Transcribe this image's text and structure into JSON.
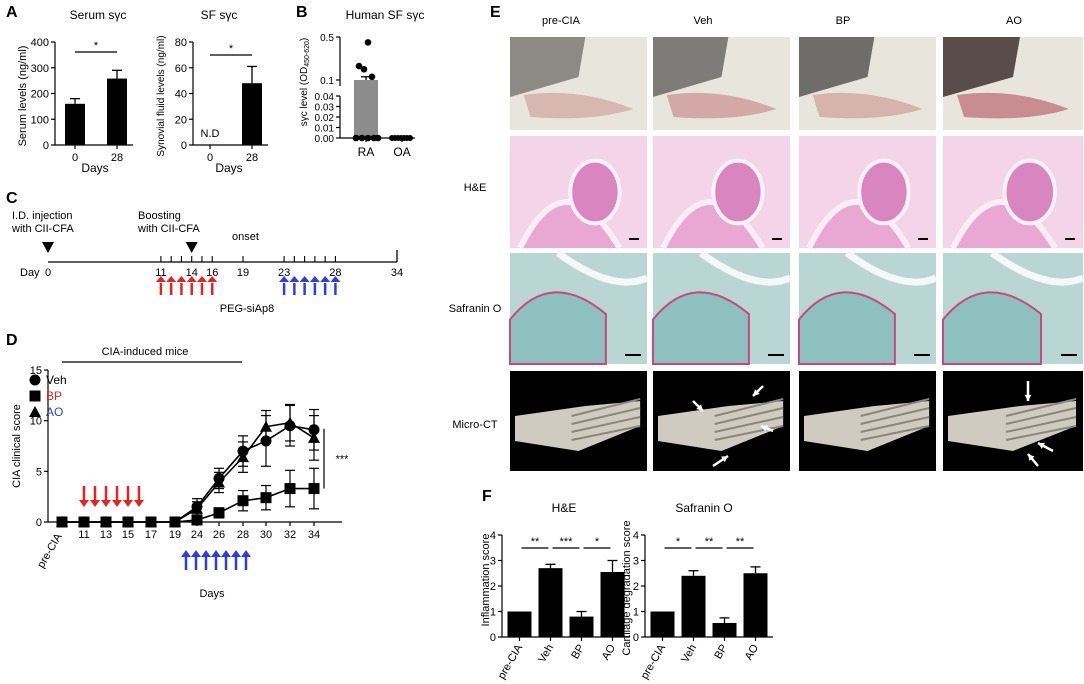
{
  "panels": {
    "A": {
      "letter": "A",
      "left": {
        "title": "Serum sγc",
        "ylabel": "Serum levels (ng/ml)",
        "xlabel": "Days",
        "yticks": [
          "0",
          "100",
          "200",
          "300",
          "400"
        ],
        "categories": [
          "0",
          "28"
        ],
        "values": [
          160,
          258
        ],
        "errors": [
          20,
          32
        ],
        "ylim": [
          0,
          400
        ],
        "sig": "*"
      },
      "right": {
        "title": "SF sγc",
        "ylabel": "Synovial fluid levels (ng/ml)",
        "xlabel": "Days",
        "yticks": [
          "0",
          "20",
          "40",
          "60",
          "80"
        ],
        "categories": [
          "0",
          "28"
        ],
        "values": [
          0,
          48
        ],
        "errors": [
          0,
          13
        ],
        "ylim": [
          0,
          80
        ],
        "nd_label": "N.D",
        "sig": "*"
      }
    },
    "B": {
      "letter": "B",
      "title": "Human SF sγc",
      "ylabel": "sγc level (OD",
      "ylabel_sub": "450-620",
      "ylabel_end": ")",
      "yticks_low": [
        "0.00",
        "0.01",
        "0.02",
        "0.03",
        "0.04"
      ],
      "yticks_high": [
        "0.1",
        "0.5"
      ],
      "categories": [
        "RA",
        "OA"
      ],
      "bar_values": [
        0.1,
        0.0
      ],
      "points_RA": [
        0.45,
        0.23,
        0.2,
        0.13,
        0.0,
        0.0,
        0.0,
        0.0,
        0.0
      ],
      "points_OA": [
        0.0,
        0.0,
        0.0,
        0.0,
        0.0,
        0.0,
        0.0
      ]
    },
    "C": {
      "letter": "C",
      "label_injection_1": "I.D. injection",
      "label_injection_2": "with CII-CFA",
      "label_boost_1": "Boosting",
      "label_boost_2": "with CII-CFA",
      "label_onset": "onset",
      "day_label": "Day",
      "ticks": [
        "0",
        "11",
        "14",
        "16",
        "19",
        "23",
        "28",
        "34"
      ],
      "treatment": "PEG-siAp8",
      "arrow_red": "#e8231f",
      "arrow_blue": "#2b3fe0"
    },
    "D": {
      "letter": "D",
      "bar_label": "CIA-induced mice",
      "ylabel": "CIA clinical score",
      "xlabel": "Days",
      "yticks": [
        "0",
        "5",
        "10",
        "15"
      ],
      "sig": "***",
      "legend": [
        {
          "name": "Veh",
          "color": "#000000",
          "marker": "circle"
        },
        {
          "name": "BP",
          "color": "#e8231f",
          "marker": "square"
        },
        {
          "name": "AO",
          "color": "#2b3fe0",
          "marker": "triangle"
        }
      ]
    },
    "E": {
      "letter": "E",
      "columns": [
        "pre-CIA",
        "Veh",
        "BP",
        "AO"
      ],
      "rows": [
        "",
        "H&E",
        "Safranin O",
        "Micro-CT"
      ]
    },
    "F": {
      "letter": "F",
      "left": {
        "title": "H&E",
        "ylabel": "Inflammation score",
        "yticks": [
          "0",
          "1",
          "2",
          "3",
          "4"
        ],
        "categories": [
          "pre-CIA",
          "Veh",
          "BP",
          "AO"
        ],
        "values": [
          1.0,
          2.7,
          0.8,
          2.55
        ],
        "errors": [
          0,
          0.15,
          0.2,
          0.45
        ],
        "ylim": [
          0,
          4
        ],
        "sig": [
          "**",
          "***",
          "*"
        ]
      },
      "right": {
        "title": "Safranin O",
        "ylabel": "Cartilage degradation score",
        "yticks": [
          "0",
          "1",
          "2",
          "3",
          "4"
        ],
        "categories": [
          "pre-CIA",
          "Veh",
          "BP",
          "AO"
        ],
        "values": [
          1.0,
          2.4,
          0.55,
          2.5
        ],
        "errors": [
          0,
          0.2,
          0.2,
          0.25
        ],
        "ylim": [
          0,
          4
        ],
        "sig": [
          "*",
          "**",
          "**"
        ]
      }
    }
  },
  "chart_data": [
    {
      "type": "bar",
      "title": "Serum sγc",
      "xlabel": "Days",
      "ylabel": "Serum levels (ng/ml)",
      "categories": [
        "0",
        "28"
      ],
      "values": [
        160,
        258
      ],
      "ylim": [
        0,
        400
      ]
    },
    {
      "type": "bar",
      "title": "SF sγc",
      "xlabel": "Days",
      "ylabel": "Synovial fluid levels (ng/ml)",
      "categories": [
        "0",
        "28"
      ],
      "values": [
        0,
        48
      ],
      "ylim": [
        0,
        80
      ]
    },
    {
      "type": "bar",
      "title": "Human SF sγc",
      "categories": [
        "RA",
        "OA"
      ],
      "values": [
        0.1,
        0.0
      ]
    },
    {
      "type": "line",
      "ylabel": "CIA clinical score",
      "xlabel": "Days",
      "categories": [
        "pre-CIA",
        "11",
        "13",
        "15",
        "17",
        "19",
        "24",
        "26",
        "28",
        "30",
        "32",
        "34"
      ],
      "ylim": [
        0,
        15
      ],
      "series": [
        {
          "name": "Veh",
          "values": [
            0,
            0,
            0,
            0,
            0,
            0,
            1.5,
            4.3,
            7.0,
            8.0,
            9.5,
            9.1
          ],
          "errors": [
            0,
            0,
            0,
            0,
            0,
            0,
            0.8,
            1.0,
            1.5,
            2.5,
            2.0,
            2.0
          ]
        },
        {
          "name": "BP",
          "values": [
            0,
            0,
            0,
            0,
            0,
            0,
            0.2,
            0.9,
            2.1,
            2.4,
            3.3,
            3.3
          ],
          "errors": [
            0,
            0,
            0,
            0,
            0,
            0,
            0.3,
            0.5,
            1.0,
            1.2,
            1.8,
            2.0
          ]
        },
        {
          "name": "AO",
          "values": [
            0,
            0,
            0,
            0,
            0,
            0,
            1.3,
            3.9,
            6.4,
            9.4,
            9.8,
            8.3
          ],
          "errors": [
            0,
            0,
            0,
            0,
            0,
            0,
            0.7,
            1.0,
            1.5,
            1.6,
            1.8,
            2.2
          ]
        }
      ]
    },
    {
      "type": "bar",
      "title": "H&E",
      "ylabel": "Inflammation score",
      "categories": [
        "pre-CIA",
        "Veh",
        "BP",
        "AO"
      ],
      "values": [
        1.0,
        2.7,
        0.8,
        2.55
      ],
      "ylim": [
        0,
        4
      ]
    },
    {
      "type": "bar",
      "title": "Safranin O",
      "ylabel": "Cartilage degradation score",
      "categories": [
        "pre-CIA",
        "Veh",
        "BP",
        "AO"
      ],
      "values": [
        1.0,
        2.4,
        0.55,
        2.5
      ],
      "ylim": [
        0,
        4
      ]
    }
  ]
}
